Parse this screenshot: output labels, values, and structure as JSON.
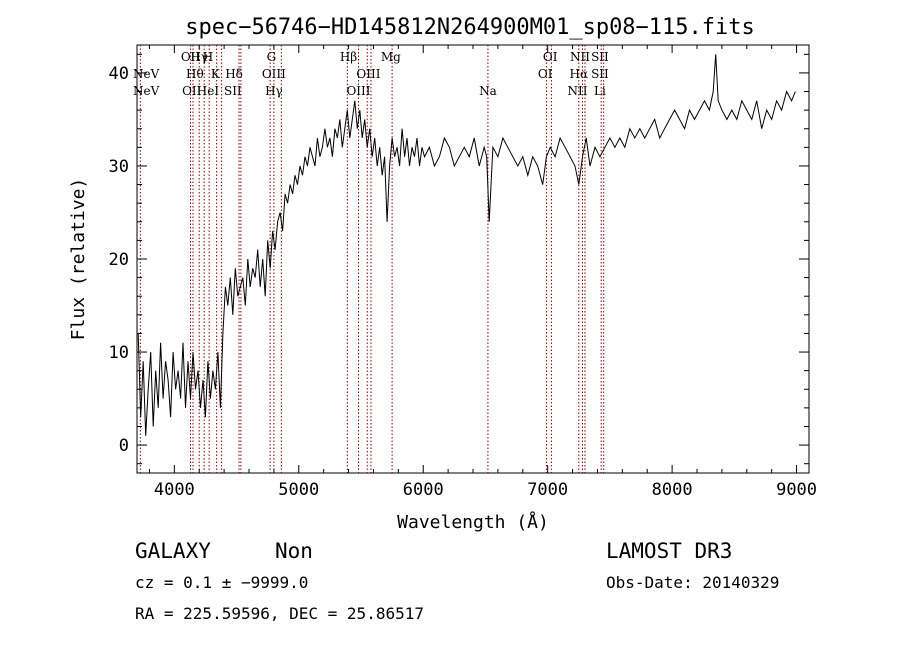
{
  "chart_data": {
    "type": "line",
    "title": "spec−56746−HD145812N264900M01_sp08−115.fits",
    "xlabel": "Wavelength (Å)",
    "ylabel": "Flux (relative)",
    "xlim": [
      3700,
      9100
    ],
    "ylim": [
      -3,
      43
    ],
    "x_ticks": [
      4000,
      5000,
      6000,
      7000,
      8000,
      9000
    ],
    "y_ticks": [
      0,
      10,
      20,
      30,
      40
    ],
    "grid": false,
    "legend": "none",
    "line_color": "#000000",
    "marker_color": "#8b0000",
    "series": [
      {
        "x": [
          3710,
          3730,
          3750,
          3770,
          3790,
          3810,
          3830,
          3850,
          3870,
          3890,
          3910,
          3930,
          3950,
          3970,
          3990,
          4010,
          4030,
          4050,
          4070,
          4090,
          4110,
          4130,
          4150,
          4170,
          4190,
          4210,
          4230,
          4250,
          4270,
          4290,
          4310,
          4330,
          4350,
          4370,
          4390,
          4410,
          4430,
          4450,
          4470,
          4490,
          4510,
          4530,
          4550,
          4570,
          4590,
          4610,
          4630,
          4650,
          4670,
          4690,
          4710,
          4730,
          4750,
          4770,
          4790,
          4810,
          4830,
          4850,
          4870,
          4890,
          4910,
          4930,
          4950,
          4970,
          4990,
          5010,
          5030,
          5050,
          5070,
          5090,
          5110,
          5130,
          5150,
          5170,
          5190,
          5210,
          5230,
          5250,
          5270,
          5290,
          5310,
          5330,
          5350,
          5370,
          5390,
          5410,
          5430,
          5450,
          5470,
          5490,
          5510,
          5530,
          5550,
          5570,
          5590,
          5610,
          5630,
          5650,
          5670,
          5690,
          5710,
          5730,
          5750,
          5770,
          5790,
          5810,
          5830,
          5850,
          5870,
          5890,
          5910,
          5930,
          5950,
          5970,
          5990,
          6010,
          6050,
          6090,
          6130,
          6170,
          6210,
          6250,
          6290,
          6330,
          6370,
          6410,
          6450,
          6490,
          6510,
          6530,
          6560,
          6600,
          6640,
          6680,
          6720,
          6760,
          6800,
          6840,
          6880,
          6920,
          6960,
          6990,
          7020,
          7060,
          7100,
          7140,
          7180,
          7220,
          7250,
          7280,
          7310,
          7340,
          7380,
          7420,
          7460,
          7500,
          7540,
          7580,
          7620,
          7660,
          7700,
          7740,
          7780,
          7820,
          7860,
          7900,
          7940,
          7980,
          8020,
          8060,
          8100,
          8140,
          8180,
          8220,
          8260,
          8300,
          8330,
          8350,
          8370,
          8400,
          8440,
          8480,
          8520,
          8560,
          8600,
          8640,
          8680,
          8720,
          8760,
          8800,
          8840,
          8880,
          8920,
          8960,
          8990
        ],
        "y": [
          12,
          3,
          9,
          1,
          6,
          10,
          2,
          8,
          4,
          11,
          5,
          9,
          7,
          3,
          10,
          6,
          8,
          5,
          11,
          4,
          9,
          5,
          10,
          6,
          8,
          4,
          7,
          3,
          9,
          5,
          8,
          6,
          10,
          4,
          12,
          17,
          15,
          18,
          14,
          19,
          16,
          17,
          18,
          15,
          20,
          17,
          19,
          18,
          21,
          17,
          20,
          16,
          22,
          19,
          23,
          21,
          24,
          25,
          23,
          27,
          26,
          28,
          27,
          29,
          28,
          30,
          29,
          31,
          30,
          32,
          31,
          30,
          33,
          31,
          32,
          34,
          32,
          33,
          31,
          34,
          33,
          35,
          32,
          34,
          36,
          33,
          35,
          37,
          34,
          36,
          33,
          35,
          32,
          34,
          31,
          33,
          30,
          32,
          29,
          31,
          24,
          30,
          33,
          31,
          32,
          30,
          34,
          31,
          33,
          30,
          32,
          31,
          33,
          30,
          32,
          31,
          32,
          30,
          31,
          33,
          32,
          30,
          31,
          32,
          31,
          33,
          30,
          32,
          31,
          24,
          32,
          31,
          33,
          32,
          31,
          30,
          31,
          29,
          31,
          30,
          28,
          31,
          32,
          31,
          33,
          32,
          31,
          30,
          28,
          31,
          33,
          30,
          32,
          31,
          32,
          33,
          32,
          33,
          32,
          34,
          33,
          34,
          33,
          34,
          35,
          33,
          34,
          35,
          36,
          35,
          34,
          36,
          35,
          36,
          37,
          36,
          38,
          42,
          37,
          36,
          35,
          36,
          35,
          37,
          36,
          35,
          37,
          34,
          36,
          35,
          37,
          36,
          38,
          37,
          38
        ]
      }
    ],
    "line_labels": [
      {
        "name": "NeV",
        "x": 3727,
        "label_row": 1,
        "side": "left"
      },
      {
        "name": "NeV",
        "x": 3727,
        "label_row": 2,
        "side": "left"
      },
      {
        "name": "OII",
        "x": 4130,
        "label_row": 0,
        "side": "center"
      },
      {
        "name": "Hγ",
        "x": 4200,
        "label_row": 0,
        "side": "center"
      },
      {
        "name": "H",
        "x": 4270,
        "label_row": 0,
        "side": "center"
      },
      {
        "name": "Hθ",
        "x": 4165,
        "label_row": 1,
        "side": "center"
      },
      {
        "name": "K",
        "x": 4330,
        "label_row": 1,
        "side": "center"
      },
      {
        "name": "Hδ",
        "x": 4480,
        "label_row": 1,
        "side": "center"
      },
      {
        "name": "OII",
        "x": 4140,
        "label_row": 2,
        "side": "center"
      },
      {
        "name": "HeI",
        "x": 4270,
        "label_row": 2,
        "side": "center"
      },
      {
        "name": "SII",
        "x": 4470,
        "label_row": 2,
        "side": "center"
      },
      {
        "name": "G",
        "x": 4780,
        "label_row": 0,
        "side": "center"
      },
      {
        "name": "OIII",
        "x": 4800,
        "label_row": 1,
        "side": "center"
      },
      {
        "name": "Hγ",
        "x": 4800,
        "label_row": 2,
        "side": "center"
      },
      {
        "name": "Hβ",
        "x": 5400,
        "label_row": 0,
        "side": "center"
      },
      {
        "name": "OIII",
        "x": 5560,
        "label_row": 1,
        "side": "center"
      },
      {
        "name": "OIII",
        "x": 5480,
        "label_row": 2,
        "side": "center"
      },
      {
        "name": "Mg",
        "x": 5740,
        "label_row": 0,
        "side": "center"
      },
      {
        "name": "Na",
        "x": 6520,
        "label_row": 2,
        "side": "center"
      },
      {
        "name": "OI",
        "x": 7020,
        "label_row": 0,
        "side": "center"
      },
      {
        "name": "OI",
        "x": 6980,
        "label_row": 1,
        "side": "center"
      },
      {
        "name": "NII",
        "x": 7260,
        "label_row": 0,
        "side": "center"
      },
      {
        "name": "Hα",
        "x": 7250,
        "label_row": 1,
        "side": "center"
      },
      {
        "name": "NII",
        "x": 7240,
        "label_row": 2,
        "side": "center"
      },
      {
        "name": "SII",
        "x": 7420,
        "label_row": 0,
        "side": "center"
      },
      {
        "name": "SII",
        "x": 7420,
        "label_row": 1,
        "side": "center"
      },
      {
        "name": "Li",
        "x": 7420,
        "label_row": 2,
        "side": "center"
      }
    ],
    "line_markers": [
      3727,
      4130,
      4150,
      4200,
      4240,
      4280,
      4340,
      4380,
      4520,
      4535,
      4770,
      4800,
      4860,
      5390,
      5480,
      5550,
      5580,
      5750,
      6520,
      6990,
      7030,
      7250,
      7280,
      7300,
      7430,
      7450
    ]
  },
  "info": {
    "class_label": "GALAXY",
    "subclass_label": "Non",
    "survey": "LAMOST DR3",
    "cz_line": "cz = 0.1 ± −9999.0",
    "obs_date": "Obs-Date: 20140329",
    "coords_line": "RA = 225.59596, DEC =  25.86517"
  }
}
